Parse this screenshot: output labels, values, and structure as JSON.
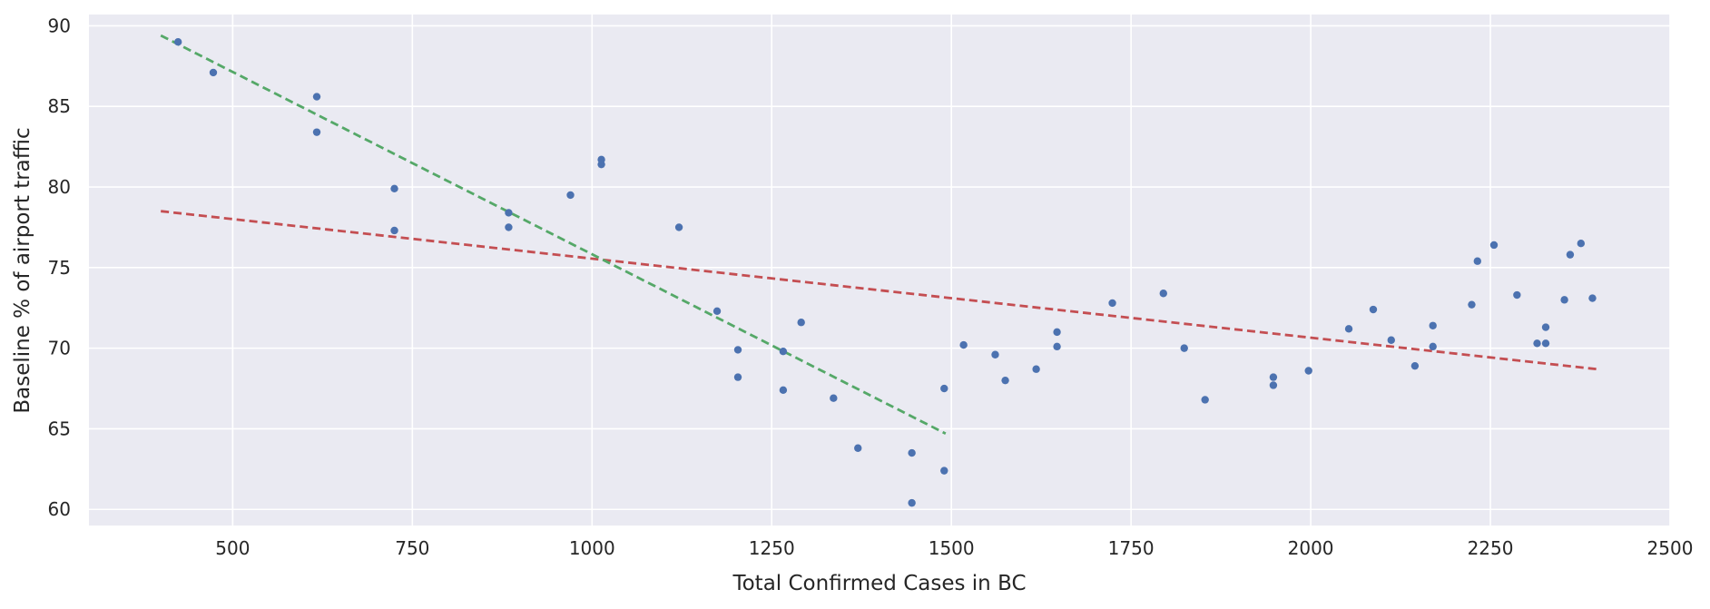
{
  "chart_data": {
    "type": "scatter",
    "title": "",
    "xlabel": "Total Confirmed Cases in BC",
    "ylabel": "Baseline % of airport traffic",
    "xlim": [
      300,
      2500
    ],
    "ylim": [
      59,
      90.7
    ],
    "xticks": [
      500,
      750,
      1000,
      1250,
      1500,
      1750,
      2000,
      2250,
      2500
    ],
    "yticks": [
      60,
      65,
      70,
      75,
      80,
      85,
      90
    ],
    "grid": true,
    "colors": {
      "background": "#eaeaf2",
      "grid": "#ffffff",
      "points": "#4c72b0",
      "fit_all": "#c44e52",
      "fit_early": "#55a868",
      "text": "#262626"
    },
    "points": [
      {
        "x": 424,
        "y": 89.0
      },
      {
        "x": 473,
        "y": 87.1
      },
      {
        "x": 617,
        "y": 85.6
      },
      {
        "x": 617,
        "y": 83.4
      },
      {
        "x": 725,
        "y": 79.9
      },
      {
        "x": 725,
        "y": 77.3
      },
      {
        "x": 884,
        "y": 78.4
      },
      {
        "x": 884,
        "y": 77.5
      },
      {
        "x": 970,
        "y": 79.5
      },
      {
        "x": 1013,
        "y": 81.7
      },
      {
        "x": 1013,
        "y": 81.4
      },
      {
        "x": 1121,
        "y": 77.5
      },
      {
        "x": 1174,
        "y": 72.3
      },
      {
        "x": 1203,
        "y": 69.9
      },
      {
        "x": 1203,
        "y": 68.2
      },
      {
        "x": 1266,
        "y": 69.8
      },
      {
        "x": 1266,
        "y": 67.4
      },
      {
        "x": 1291,
        "y": 71.6
      },
      {
        "x": 1336,
        "y": 66.9
      },
      {
        "x": 1370,
        "y": 63.8
      },
      {
        "x": 1445,
        "y": 63.5
      },
      {
        "x": 1445,
        "y": 60.4
      },
      {
        "x": 1490,
        "y": 67.5
      },
      {
        "x": 1490,
        "y": 62.4
      },
      {
        "x": 1517,
        "y": 70.2
      },
      {
        "x": 1561,
        "y": 69.6
      },
      {
        "x": 1575,
        "y": 68.0
      },
      {
        "x": 1618,
        "y": 68.7
      },
      {
        "x": 1647,
        "y": 71.0
      },
      {
        "x": 1647,
        "y": 70.1
      },
      {
        "x": 1724,
        "y": 72.8
      },
      {
        "x": 1795,
        "y": 73.4
      },
      {
        "x": 1824,
        "y": 70.0
      },
      {
        "x": 1853,
        "y": 66.8
      },
      {
        "x": 1948,
        "y": 68.2
      },
      {
        "x": 1948,
        "y": 67.7
      },
      {
        "x": 1997,
        "y": 68.6
      },
      {
        "x": 2053,
        "y": 71.2
      },
      {
        "x": 2087,
        "y": 72.4
      },
      {
        "x": 2112,
        "y": 70.5
      },
      {
        "x": 2145,
        "y": 68.9
      },
      {
        "x": 2170,
        "y": 71.4
      },
      {
        "x": 2170,
        "y": 70.1
      },
      {
        "x": 2224,
        "y": 72.7
      },
      {
        "x": 2232,
        "y": 75.4
      },
      {
        "x": 2255,
        "y": 76.4
      },
      {
        "x": 2287,
        "y": 73.3
      },
      {
        "x": 2315,
        "y": 70.3
      },
      {
        "x": 2327,
        "y": 71.3
      },
      {
        "x": 2327,
        "y": 70.3
      },
      {
        "x": 2353,
        "y": 73.0
      },
      {
        "x": 2361,
        "y": 75.8
      },
      {
        "x": 2376,
        "y": 76.5
      },
      {
        "x": 2392,
        "y": 73.1
      }
    ],
    "fit_lines": [
      {
        "style": "dashed",
        "color": "#c44e52",
        "x": [
          400,
          2398
        ],
        "y": [
          78.5,
          68.7
        ]
      },
      {
        "style": "dashed",
        "color": "#55a868",
        "x": [
          400,
          1492
        ],
        "y": [
          89.4,
          64.7
        ]
      }
    ]
  }
}
